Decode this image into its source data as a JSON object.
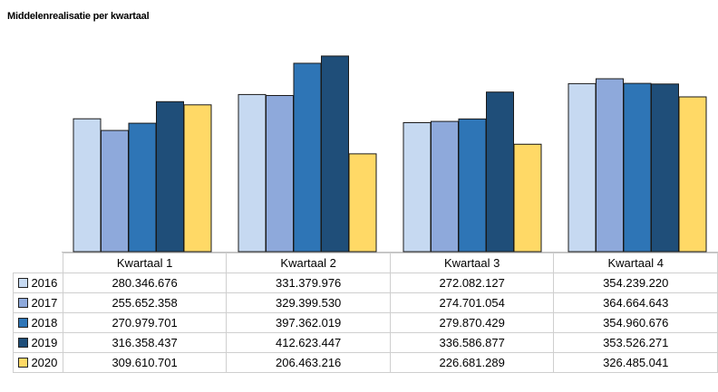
{
  "chart_data": {
    "type": "bar",
    "title": "Middelenrealisatie per kwartaal",
    "categories": [
      "Kwartaal 1",
      "Kwartaal 2",
      "Kwartaal 3",
      "Kwartaal 4"
    ],
    "series": [
      {
        "name": "2016",
        "color": "#c6d9f1",
        "values": [
          280346676,
          331379976,
          272082127,
          354239220
        ],
        "labels": [
          "280.346.676",
          "331.379.976",
          "272.082.127",
          "354.239.220"
        ]
      },
      {
        "name": "2017",
        "color": "#8ea9db",
        "values": [
          255652358,
          329399530,
          274701054,
          364664643
        ],
        "labels": [
          "255.652.358",
          "329.399.530",
          "274.701.054",
          "364.664.643"
        ]
      },
      {
        "name": "2018",
        "color": "#2e75b6",
        "values": [
          270979701,
          397362019,
          279870429,
          354960676
        ],
        "labels": [
          "270.979.701",
          "397.362.019",
          "279.870.429",
          "354.960.676"
        ]
      },
      {
        "name": "2019",
        "color": "#1f4e79",
        "values": [
          316358437,
          412623447,
          336586877,
          353526271
        ],
        "labels": [
          "316.358.437",
          "412.623.447",
          "336.586.877",
          "353.526.271"
        ]
      },
      {
        "name": "2020",
        "color": "#ffd966",
        "values": [
          309610701,
          206463216,
          226681289,
          326485041
        ],
        "labels": [
          "309.610.701",
          "206.463.216",
          "226.681.289",
          "326.485.041"
        ]
      }
    ],
    "ylim": [
      0,
      420000000
    ],
    "grid": false,
    "legend": "data-table-left"
  }
}
